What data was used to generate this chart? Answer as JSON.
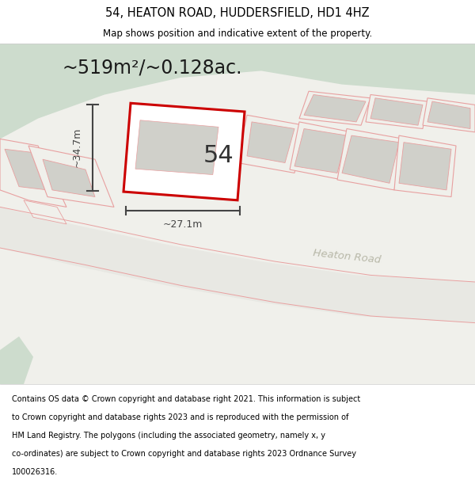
{
  "title": "54, HEATON ROAD, HUDDERSFIELD, HD1 4HZ",
  "subtitle": "Map shows position and indicative extent of the property.",
  "area_text": "~519m²/~0.128ac.",
  "number_label": "54",
  "dim_width": "~27.1m",
  "dim_height": "~34.7m",
  "road_label": "Heaton Road",
  "footer_lines": [
    "Contains OS data © Crown copyright and database right 2021. This information is subject",
    "to Crown copyright and database rights 2023 and is reproduced with the permission of",
    "HM Land Registry. The polygons (including the associated geometry, namely x, y",
    "co-ordinates) are subject to Crown copyright and database rights 2023 Ordnance Survey",
    "100026316."
  ],
  "bg_color": "#f0f0eb",
  "green_color": "#cddccd",
  "road_color": "#e8e8e3",
  "parcel_outline": "#e8a0a0",
  "parcel_fill": "#e0e0da",
  "building_fill": "#d0d0ca",
  "highlight_stroke": "#cc0000",
  "highlight_fill": "#ffffff",
  "dim_color": "#444444",
  "road_label_color": "#b8b8a8",
  "title_color": "#000000",
  "footer_color": "#000000",
  "white": "#ffffff"
}
